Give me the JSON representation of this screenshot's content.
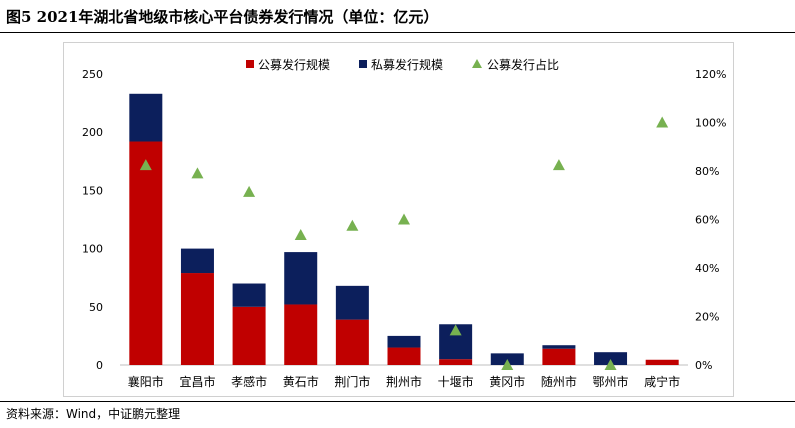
{
  "title": "图5  2021年湖北省地级市核心平台债券发行情况（单位：亿元）",
  "source": "资料来源：Wind，中证鹏元整理",
  "colors": {
    "public": "#c00000",
    "private": "#0c1f5c",
    "ratio": "#77b150"
  },
  "chart_data": {
    "type": "bar",
    "stacked": true,
    "categories": [
      "襄阳市",
      "宜昌市",
      "孝感市",
      "黄石市",
      "荆门市",
      "荆州市",
      "十堰市",
      "黄冈市",
      "随州市",
      "鄂州市",
      "咸宁市"
    ],
    "series": [
      {
        "name": "公募发行规模",
        "axis": "left",
        "type": "bar",
        "values": [
          192,
          79,
          50,
          52,
          39,
          15,
          5,
          0,
          14,
          0,
          4.5
        ]
      },
      {
        "name": "私募发行规模",
        "axis": "left",
        "type": "bar",
        "values": [
          41,
          21,
          20,
          45,
          29,
          10,
          30,
          10,
          3,
          11,
          0
        ]
      },
      {
        "name": "公募发行占比",
        "axis": "right",
        "type": "scatter",
        "values": [
          82.4,
          79.0,
          71.4,
          53.6,
          57.4,
          60.0,
          14.3,
          0,
          82.4,
          0,
          100
        ]
      }
    ],
    "y_left": {
      "ticks": [
        "0",
        "50",
        "100",
        "150",
        "200",
        "250"
      ],
      "lim": [
        0,
        250
      ]
    },
    "y_right": {
      "ticks": [
        "0%",
        "20%",
        "40%",
        "60%",
        "80%",
        "100%",
        "120%"
      ],
      "lim": [
        0,
        120
      ]
    },
    "legend_position": "top",
    "grid": false
  }
}
